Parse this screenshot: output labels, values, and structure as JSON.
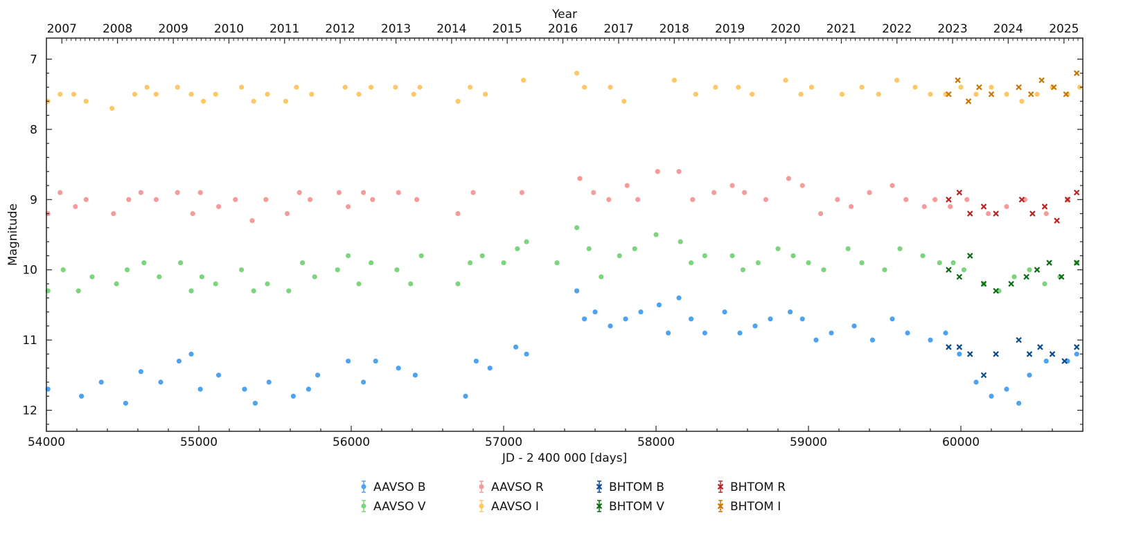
{
  "chart_data": {
    "type": "scatter",
    "xlabel": "JD - 2 400 000 [days]",
    "ylabel": "Magnitude",
    "top_axis_label": "Year",
    "xlim": [
      54000,
      60800
    ],
    "ylim": [
      12.3,
      6.7
    ],
    "y_inverted": true,
    "x_ticks": [
      54000,
      55000,
      56000,
      57000,
      58000,
      59000,
      60000
    ],
    "y_ticks": [
      7,
      8,
      9,
      10,
      11,
      12
    ],
    "year_ticks": [
      {
        "label": "2007",
        "jd": 54101.5
      },
      {
        "label": "2008",
        "jd": 54466.5
      },
      {
        "label": "2009",
        "jd": 54832.5
      },
      {
        "label": "2010",
        "jd": 55197.5
      },
      {
        "label": "2011",
        "jd": 55562.5
      },
      {
        "label": "2012",
        "jd": 55927.5
      },
      {
        "label": "2013",
        "jd": 56293.5
      },
      {
        "label": "2014",
        "jd": 56658.5
      },
      {
        "label": "2015",
        "jd": 57023.5
      },
      {
        "label": "2016",
        "jd": 57388.5
      },
      {
        "label": "2017",
        "jd": 57754.5
      },
      {
        "label": "2018",
        "jd": 58119.5
      },
      {
        "label": "2019",
        "jd": 58484.5
      },
      {
        "label": "2020",
        "jd": 58849.5
      },
      {
        "label": "2021",
        "jd": 59215.5
      },
      {
        "label": "2022",
        "jd": 59580.5
      },
      {
        "label": "2023",
        "jd": 59945.5
      },
      {
        "label": "2024",
        "jd": 60310.5
      },
      {
        "label": "2025",
        "jd": 60676.5
      }
    ],
    "grid": false,
    "legend_position": "bottom",
    "series": [
      {
        "name": "AAVSO B",
        "color": "#4da3f0",
        "marker": "circle",
        "x": [
          54010,
          54230,
          54360,
          54520,
          54620,
          54750,
          54870,
          54950,
          55010,
          55130,
          55300,
          55370,
          55460,
          55620,
          55720,
          55780,
          55980,
          56080,
          56160,
          56310,
          56420,
          56750,
          56820,
          56910,
          57080,
          57150,
          57480,
          57530,
          57600,
          57700,
          57800,
          57900,
          58020,
          58080,
          58150,
          58230,
          58320,
          58450,
          58550,
          58650,
          58750,
          58880,
          58960,
          59050,
          59150,
          59300,
          59420,
          59550,
          59650,
          59800,
          59900,
          59990,
          60100,
          60200,
          60300,
          60380,
          60450,
          60560,
          60700,
          60760
        ],
        "y": [
          11.7,
          11.8,
          11.6,
          11.9,
          11.45,
          11.6,
          11.3,
          11.2,
          11.7,
          11.5,
          11.7,
          11.9,
          11.6,
          11.8,
          11.7,
          11.5,
          11.3,
          11.6,
          11.3,
          11.4,
          11.5,
          11.8,
          11.3,
          11.4,
          11.1,
          11.2,
          10.3,
          10.7,
          10.6,
          10.8,
          10.7,
          10.6,
          10.5,
          10.9,
          10.4,
          10.7,
          10.9,
          10.6,
          10.9,
          10.8,
          10.7,
          10.6,
          10.7,
          11.0,
          10.9,
          10.8,
          11.0,
          10.7,
          10.9,
          11.0,
          10.9,
          11.2,
          11.6,
          11.8,
          11.7,
          11.9,
          11.5,
          11.3,
          11.3,
          11.2
        ]
      },
      {
        "name": "AAVSO V",
        "color": "#7dd47f",
        "marker": "circle",
        "x": [
          54010,
          54110,
          54210,
          54300,
          54460,
          54530,
          54640,
          54740,
          54880,
          54950,
          55020,
          55110,
          55280,
          55360,
          55450,
          55590,
          55680,
          55760,
          55910,
          55980,
          56050,
          56130,
          56300,
          56390,
          56460,
          56700,
          56780,
          56860,
          57000,
          57090,
          57150,
          57350,
          57480,
          57560,
          57640,
          57760,
          57860,
          58000,
          58160,
          58230,
          58320,
          58500,
          58570,
          58670,
          58800,
          58900,
          59000,
          59100,
          59260,
          59350,
          59500,
          59600,
          59750,
          59860,
          59950,
          60020,
          60150,
          60250,
          60350,
          60450,
          60550,
          60650,
          60760
        ],
        "y": [
          10.3,
          10.0,
          10.3,
          10.1,
          10.2,
          10.0,
          9.9,
          10.1,
          9.9,
          10.3,
          10.1,
          10.2,
          10.0,
          10.3,
          10.2,
          10.3,
          9.9,
          10.1,
          10.0,
          9.8,
          10.2,
          9.9,
          10.0,
          10.2,
          9.8,
          10.2,
          9.9,
          9.8,
          9.9,
          9.7,
          9.6,
          9.9,
          9.4,
          9.7,
          10.1,
          9.8,
          9.7,
          9.5,
          9.6,
          9.9,
          9.8,
          9.8,
          10.0,
          9.9,
          9.7,
          9.8,
          9.9,
          10.0,
          9.7,
          9.9,
          10.0,
          9.7,
          9.8,
          9.9,
          9.9,
          10.0,
          10.2,
          10.3,
          10.1,
          10.0,
          10.2,
          10.1,
          9.9
        ]
      },
      {
        "name": "AAVSO R",
        "color": "#f59b9a",
        "marker": "circle",
        "x": [
          54010,
          54090,
          54190,
          54260,
          54440,
          54540,
          54620,
          54720,
          54860,
          54960,
          55010,
          55130,
          55240,
          55350,
          55440,
          55580,
          55660,
          55730,
          55920,
          55980,
          56080,
          56140,
          56310,
          56430,
          56700,
          56800,
          57120,
          57500,
          57590,
          57690,
          57810,
          57880,
          58010,
          58150,
          58240,
          58380,
          58500,
          58580,
          58720,
          58870,
          58960,
          59080,
          59190,
          59280,
          59400,
          59550,
          59640,
          59760,
          59830,
          59930,
          60040,
          60180,
          60300,
          60420,
          60560,
          60700
        ],
        "y": [
          9.2,
          8.9,
          9.1,
          9.0,
          9.2,
          9.0,
          8.9,
          9.0,
          8.9,
          9.2,
          8.9,
          9.1,
          9.0,
          9.3,
          9.0,
          9.2,
          8.9,
          9.0,
          8.9,
          9.1,
          8.9,
          9.0,
          8.9,
          9.0,
          9.2,
          8.9,
          8.9,
          8.7,
          8.9,
          9.0,
          8.8,
          9.0,
          8.6,
          8.6,
          9.0,
          8.9,
          8.8,
          8.9,
          9.0,
          8.7,
          8.8,
          9.2,
          9.0,
          9.1,
          8.9,
          8.8,
          9.0,
          9.1,
          9.0,
          9.1,
          9.0,
          9.2,
          9.1,
          9.0,
          9.2,
          9.0
        ]
      },
      {
        "name": "AAVSO I",
        "color": "#ffc766",
        "marker": "circle",
        "x": [
          54010,
          54090,
          54180,
          54260,
          54430,
          54580,
          54660,
          54720,
          54860,
          54950,
          55030,
          55110,
          55280,
          55360,
          55450,
          55570,
          55640,
          55740,
          55960,
          56050,
          56130,
          56290,
          56410,
          56450,
          56700,
          56780,
          56880,
          57130,
          57480,
          57530,
          57700,
          57790,
          58120,
          58260,
          58390,
          58540,
          58630,
          58850,
          58950,
          59020,
          59220,
          59350,
          59460,
          59580,
          59700,
          59800,
          59900,
          60000,
          60100,
          60200,
          60300,
          60400,
          60500,
          60600,
          60700,
          60780
        ],
        "y": [
          7.6,
          7.5,
          7.5,
          7.6,
          7.7,
          7.5,
          7.4,
          7.5,
          7.4,
          7.5,
          7.6,
          7.5,
          7.4,
          7.6,
          7.5,
          7.6,
          7.4,
          7.5,
          7.4,
          7.5,
          7.4,
          7.4,
          7.5,
          7.4,
          7.6,
          7.4,
          7.5,
          7.3,
          7.2,
          7.4,
          7.4,
          7.6,
          7.3,
          7.5,
          7.4,
          7.4,
          7.5,
          7.3,
          7.5,
          7.4,
          7.5,
          7.4,
          7.5,
          7.3,
          7.4,
          7.5,
          7.5,
          7.4,
          7.5,
          7.4,
          7.5,
          7.6,
          7.5,
          7.4,
          7.5,
          7.4
        ]
      },
      {
        "name": "BHTOM B",
        "color": "#0b4a8f",
        "marker": "x",
        "x": [
          59920,
          59990,
          60060,
          60150,
          60230,
          60380,
          60450,
          60520,
          60600,
          60680,
          60760
        ],
        "y": [
          11.1,
          11.1,
          11.2,
          11.5,
          11.2,
          11.0,
          11.2,
          11.1,
          11.2,
          11.3,
          11.1
        ]
      },
      {
        "name": "BHTOM V",
        "color": "#0a6b12",
        "marker": "x",
        "x": [
          59920,
          59990,
          60060,
          60150,
          60230,
          60330,
          60430,
          60500,
          60580,
          60660,
          60760
        ],
        "y": [
          10.0,
          10.1,
          9.8,
          10.2,
          10.3,
          10.2,
          10.1,
          10.0,
          9.9,
          10.1,
          9.9
        ]
      },
      {
        "name": "BHTOM R",
        "color": "#b82326",
        "marker": "x",
        "x": [
          59920,
          59990,
          60060,
          60150,
          60230,
          60400,
          60470,
          60550,
          60630,
          60700,
          60760
        ],
        "y": [
          9.0,
          8.9,
          9.2,
          9.1,
          9.2,
          9.0,
          9.2,
          9.1,
          9.3,
          9.0,
          8.9
        ]
      },
      {
        "name": "BHTOM I",
        "color": "#c87500",
        "marker": "x",
        "x": [
          59920,
          59980,
          60050,
          60120,
          60200,
          60380,
          60460,
          60530,
          60610,
          60690,
          60760
        ],
        "y": [
          7.5,
          7.3,
          7.6,
          7.4,
          7.5,
          7.4,
          7.5,
          7.3,
          7.4,
          7.5,
          7.2
        ]
      }
    ]
  }
}
